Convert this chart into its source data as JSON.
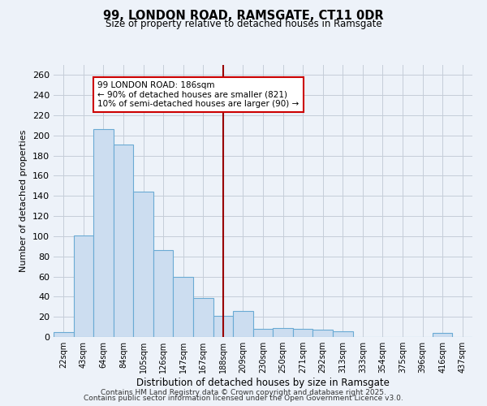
{
  "title": "99, LONDON ROAD, RAMSGATE, CT11 0DR",
  "subtitle": "Size of property relative to detached houses in Ramsgate",
  "xlabel": "Distribution of detached houses by size in Ramsgate",
  "ylabel": "Number of detached properties",
  "categories": [
    "22sqm",
    "43sqm",
    "64sqm",
    "84sqm",
    "105sqm",
    "126sqm",
    "147sqm",
    "167sqm",
    "188sqm",
    "209sqm",
    "230sqm",
    "250sqm",
    "271sqm",
    "292sqm",
    "313sqm",
    "333sqm",
    "354sqm",
    "375sqm",
    "396sqm",
    "416sqm",
    "437sqm"
  ],
  "values": [
    5,
    101,
    206,
    191,
    144,
    86,
    60,
    39,
    21,
    26,
    8,
    9,
    8,
    7,
    6,
    0,
    0,
    0,
    0,
    4,
    0
  ],
  "bar_color": "#ccddf0",
  "bar_edge_color": "#6aaad4",
  "background_color": "#edf2f9",
  "grid_color": "#c5cdd8",
  "vline_x_idx": 8,
  "vline_color": "#990000",
  "annotation_title": "99 LONDON ROAD: 186sqm",
  "annotation_line1": "← 90% of detached houses are smaller (821)",
  "annotation_line2": "10% of semi-detached houses are larger (90) →",
  "annotation_box_facecolor": "#ffffff",
  "annotation_box_edgecolor": "#cc0000",
  "ylim": [
    0,
    270
  ],
  "yticks": [
    0,
    20,
    40,
    60,
    80,
    100,
    120,
    140,
    160,
    180,
    200,
    220,
    240,
    260
  ],
  "footer1": "Contains HM Land Registry data © Crown copyright and database right 2025.",
  "footer2": "Contains public sector information licensed under the Open Government Licence v3.0."
}
